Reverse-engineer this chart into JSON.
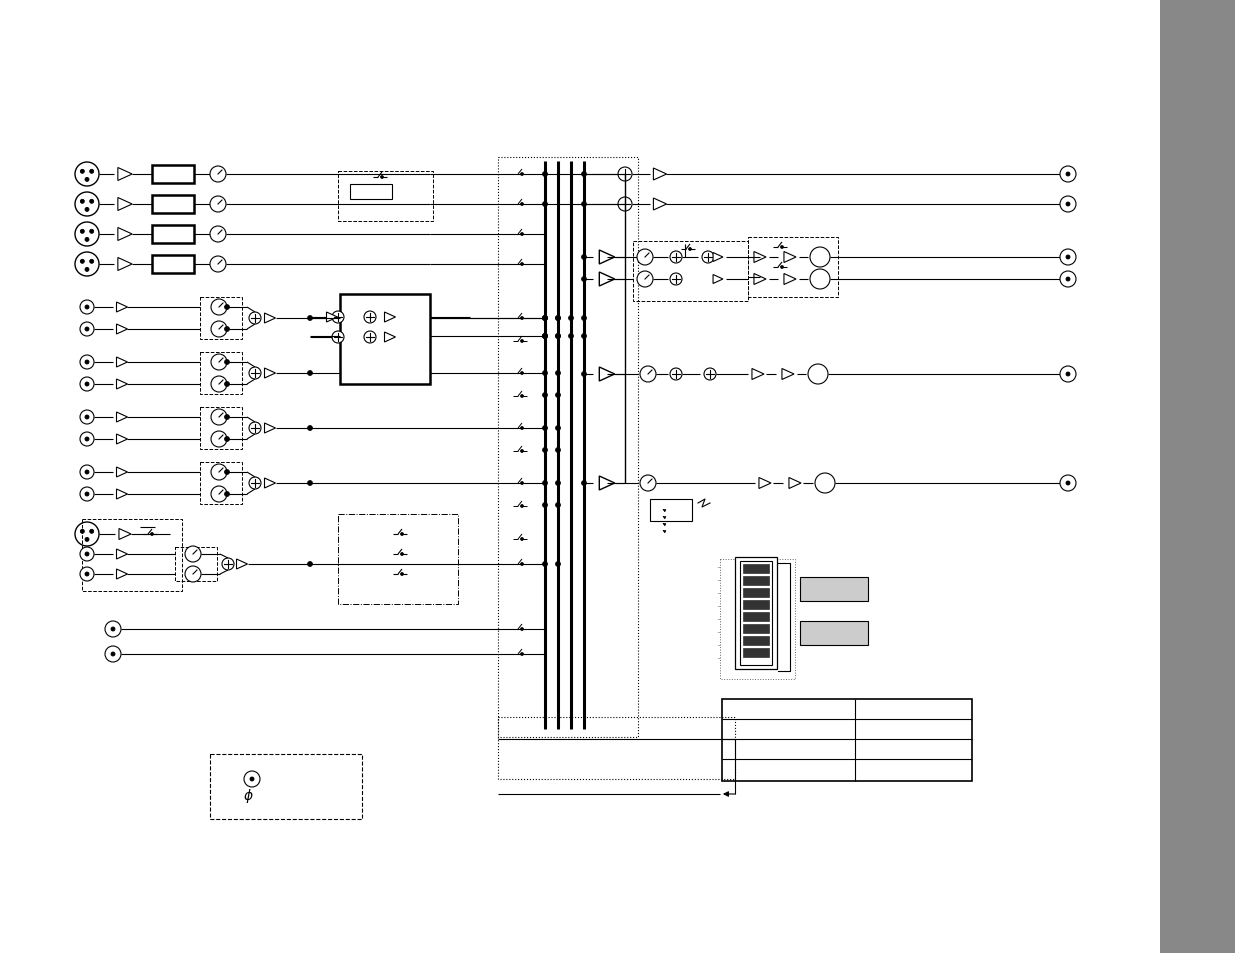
{
  "bg_color": "#ffffff",
  "gray_bar_color": "#888888",
  "fig_width": 12.35,
  "fig_height": 9.54,
  "dpi": 100
}
